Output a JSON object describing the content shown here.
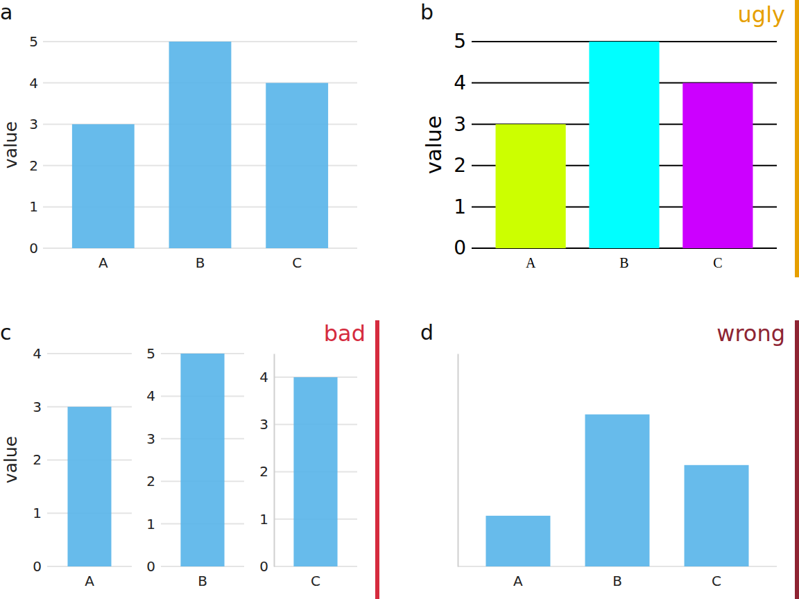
{
  "chart_data": [
    {
      "type": "bar",
      "title": "a",
      "y_label": "value",
      "categories": [
        "A",
        "B",
        "C"
      ],
      "values": [
        3,
        5,
        4
      ],
      "color": "#56b4e9",
      "ylim": [
        0,
        5
      ],
      "yticks": [
        0,
        1,
        2,
        3,
        4,
        5
      ],
      "grid": true
    },
    {
      "type": "bar",
      "title": "b",
      "y_label": "value",
      "categories": [
        "A",
        "B",
        "C"
      ],
      "values": [
        3,
        5,
        4
      ],
      "colors": [
        "#ccff00",
        "#00ffff",
        "#cc00ff"
      ],
      "ylim": [
        0,
        5
      ],
      "yticks": [
        0,
        1,
        2,
        3,
        4,
        5
      ],
      "grid": true,
      "annotations": [
        {
          "text": "ugly",
          "color": "#e69f00"
        }
      ]
    },
    {
      "type": "bar",
      "title": "c",
      "y_label": "value",
      "categories": [
        "A"
      ],
      "values": [
        3
      ],
      "color": "#56b4e9",
      "ylim": [
        0,
        4
      ],
      "yticks": [
        0,
        1,
        2,
        3,
        4
      ],
      "grid": true
    },
    {
      "type": "bar",
      "categories": [
        "B"
      ],
      "values": [
        5
      ],
      "color": "#56b4e9",
      "ylim": [
        0,
        5
      ],
      "yticks": [
        0,
        1,
        2,
        3,
        4,
        5
      ],
      "grid": true
    },
    {
      "type": "bar",
      "categories": [
        "C"
      ],
      "values": [
        4
      ],
      "color": "#56b4e9",
      "ylim": [
        0,
        4.5
      ],
      "yticks": [
        0,
        1,
        2,
        3,
        4
      ],
      "grid": true,
      "annotations": [
        {
          "text": "bad",
          "color": "#d52b3e"
        }
      ]
    },
    {
      "type": "bar",
      "title": "d",
      "categories": [
        "A",
        "B",
        "C"
      ],
      "values": [
        3,
        5,
        4
      ],
      "color": "#56b4e9",
      "ylim": [
        2,
        6.2
      ],
      "yticks": [
        2
      ],
      "grid": true,
      "tick_labels": "x",
      "annotations": [
        {
          "text": "wrong",
          "color": "#8e2433"
        }
      ]
    }
  ]
}
